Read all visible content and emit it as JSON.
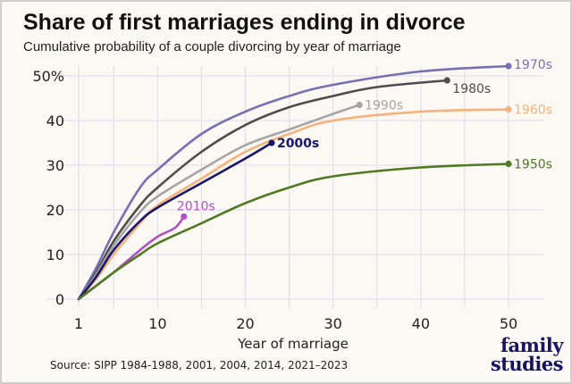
{
  "chart_data": {
    "type": "line",
    "title": "Share of first marriages ending in divorce",
    "subtitle": "Cumulative probability of a couple divorcing by year of marriage",
    "xlabel": "Year of marriage",
    "ylabel": "",
    "xlim": [
      1,
      50
    ],
    "ylim": [
      0,
      50
    ],
    "xticks": [
      "1",
      "10",
      "20",
      "30",
      "40",
      "50"
    ],
    "yticks": [
      "0",
      "10",
      "20",
      "30",
      "40",
      "50%"
    ],
    "grid": true,
    "legend": "direct labels at line ends",
    "source": "Source: SIPP 1984-1988, 2001, 2004, 2014, 2021–2023",
    "series": [
      {
        "name": "1970s",
        "color": "#7670b4",
        "x": [
          1,
          3,
          5,
          8,
          10,
          15,
          20,
          25,
          30,
          40,
          50
        ],
        "y": [
          0,
          7,
          15,
          25,
          29,
          37,
          42,
          45.5,
          48,
          51,
          52.2
        ]
      },
      {
        "name": "1980s",
        "color": "#4d4d4d",
        "x": [
          1,
          3,
          5,
          8,
          10,
          15,
          20,
          25,
          30,
          35,
          43
        ],
        "y": [
          0,
          6,
          13,
          21,
          25,
          33,
          39,
          43,
          45.5,
          47.5,
          49
        ]
      },
      {
        "name": "1990s",
        "color": "#a6a6a6",
        "x": [
          1,
          3,
          5,
          8,
          10,
          15,
          20,
          25,
          30,
          33
        ],
        "y": [
          0,
          5.5,
          12,
          19.5,
          23,
          29,
          34.5,
          38,
          41.5,
          43.5
        ]
      },
      {
        "name": "1960s",
        "color": "#f7b27c",
        "x": [
          1,
          3,
          5,
          8,
          10,
          15,
          20,
          25,
          30,
          40,
          50
        ],
        "y": [
          0,
          4.5,
          10,
          17,
          21,
          27,
          33,
          37,
          40,
          42,
          42.5
        ]
      },
      {
        "name": "2000s",
        "color": "#17176b",
        "x": [
          1,
          3,
          5,
          8,
          10,
          15,
          20,
          23
        ],
        "y": [
          0,
          5,
          11,
          17.5,
          20.5,
          26,
          31.5,
          35
        ]
      },
      {
        "name": "2010s",
        "color": "#b152c6",
        "x": [
          1,
          3,
          5,
          8,
          10,
          12,
          13
        ],
        "y": [
          0,
          3,
          6,
          11,
          14,
          16,
          18.5
        ]
      },
      {
        "name": "1950s",
        "color": "#4f7a23",
        "x": [
          1,
          3,
          5,
          8,
          10,
          15,
          20,
          25,
          30,
          40,
          50
        ],
        "y": [
          0,
          3,
          6,
          10,
          12.5,
          17,
          21.5,
          25,
          27.5,
          29.5,
          30.3
        ]
      }
    ]
  },
  "logo": {
    "line1": "family",
    "line2": "studies"
  }
}
